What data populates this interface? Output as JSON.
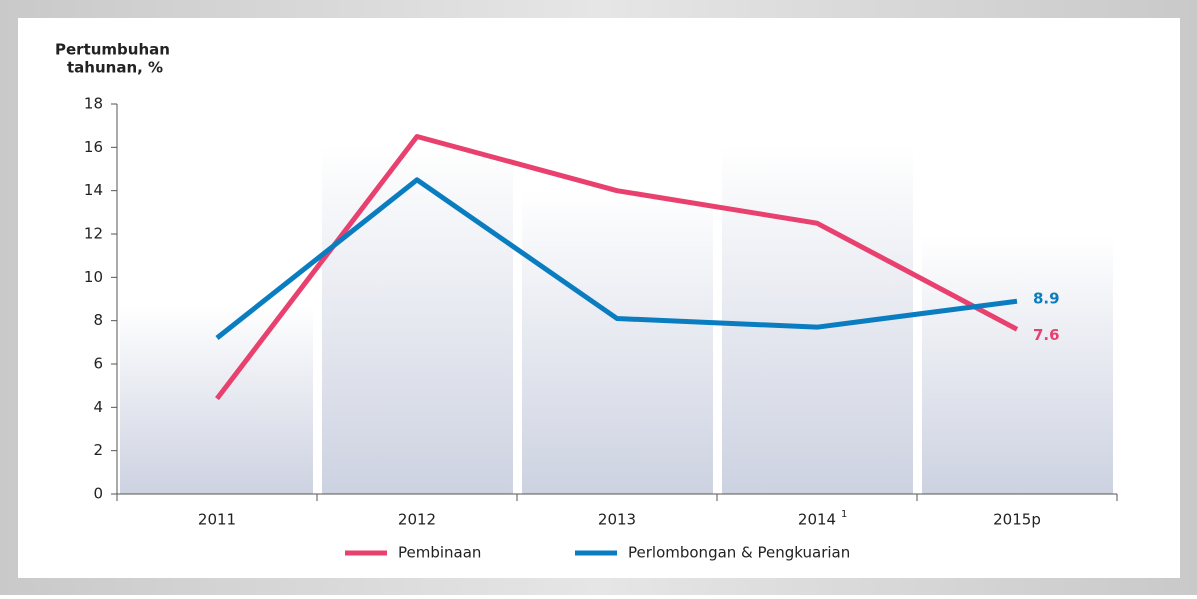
{
  "chart_data": {
    "type": "line",
    "y_label": [
      "Pertumbuhan",
      "tahunan, %"
    ],
    "categories": [
      "2011",
      "2012",
      "2013",
      "2014",
      "2015p"
    ],
    "category_footnotes": [
      null,
      null,
      null,
      "1",
      null
    ],
    "series": [
      {
        "name": "Pembinaan",
        "color": "#e8416f",
        "values": [
          4.4,
          16.5,
          14.0,
          12.5,
          7.6
        ]
      },
      {
        "name": "Perlombongan & Pengkuarian",
        "color": "#0a7dc1",
        "values": [
          7.2,
          14.5,
          8.1,
          7.7,
          8.9
        ]
      }
    ],
    "ylim": [
      0,
      18
    ],
    "yticks": [
      0,
      2,
      4,
      6,
      8,
      10,
      12,
      14,
      16,
      18
    ]
  }
}
